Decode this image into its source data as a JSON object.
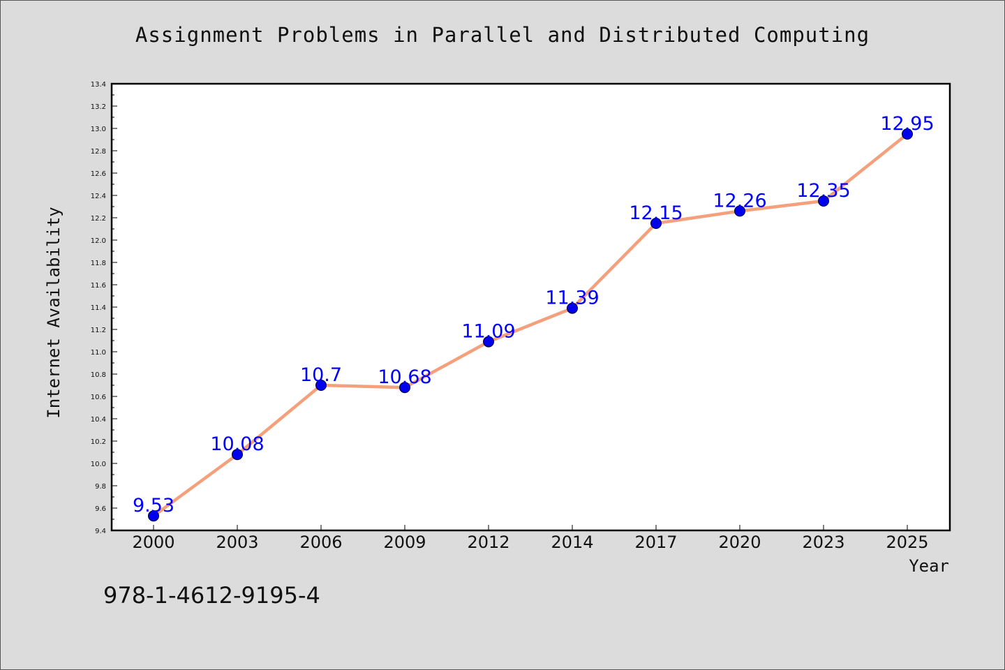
{
  "isbn": "978-1-4612-9195-4",
  "chart_data": {
    "type": "line",
    "title": "Assignment Problems in Parallel and Distributed Computing",
    "xlabel": "Year",
    "ylabel": "Internet Availability",
    "categories": [
      "2000",
      "2003",
      "2006",
      "2009",
      "2012",
      "2014",
      "2017",
      "2020",
      "2023",
      "2025"
    ],
    "series": [
      {
        "values": [
          9.53,
          10.08,
          10.7,
          10.68,
          11.09,
          11.39,
          12.15,
          12.26,
          12.35,
          12.95
        ],
        "labels": [
          "9.53",
          "10.08",
          "10.7",
          "10.68",
          "11.09",
          "11.39",
          "12.15",
          "12.26",
          "12.35",
          "12.95"
        ]
      }
    ],
    "ylim": [
      9.4,
      13.4
    ],
    "yticks": [
      "9.4",
      "9.6",
      "9.8",
      "10.0",
      "10.2",
      "10.4",
      "10.6",
      "10.8",
      "11.0",
      "11.2",
      "11.4",
      "11.6",
      "11.8",
      "12.0",
      "12.2",
      "12.4",
      "12.6",
      "12.8",
      "13.0",
      "13.2",
      "13.4"
    ],
    "grid": false,
    "colors": {
      "line": "#f4a07c",
      "marker": "#0000ee",
      "label": "#0000ff"
    }
  }
}
